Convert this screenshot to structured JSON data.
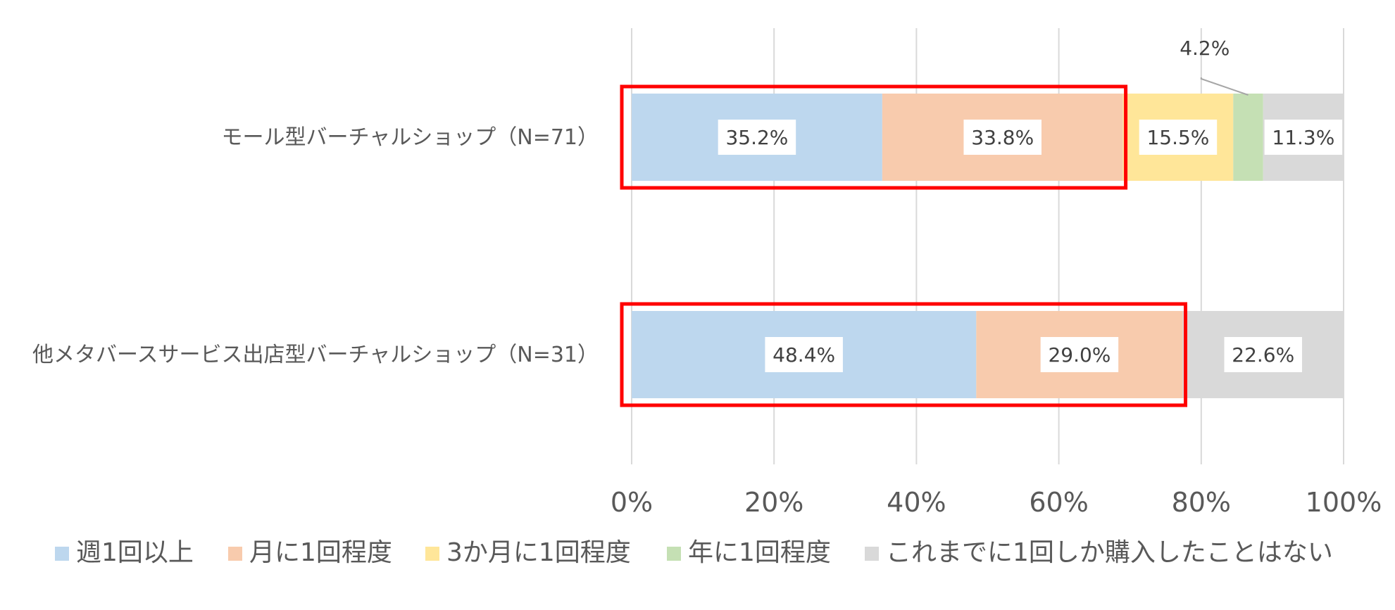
{
  "chart_data": {
    "type": "bar",
    "orientation": "horizontal",
    "stacked": "percent",
    "categories": [
      "モール型バーチャルショップ（N=71）",
      "他メタバースサービス出店型バーチャルショップ（N=31）"
    ],
    "series": [
      {
        "name": "週1回以上",
        "color": "#BDD7EE",
        "values": [
          35.2,
          48.4
        ],
        "labels": [
          "35.2%",
          "48.4%"
        ]
      },
      {
        "name": "月に1回程度",
        "color": "#F8CBAD",
        "values": [
          33.8,
          29.0
        ],
        "labels": [
          "33.8%",
          "29.0%"
        ]
      },
      {
        "name": "3か月に1回程度",
        "color": "#FFE699",
        "values": [
          15.5,
          0
        ],
        "labels": [
          "15.5%",
          ""
        ]
      },
      {
        "name": "年に1回程度",
        "color": "#C5E0B4",
        "values": [
          4.2,
          0
        ],
        "labels": [
          "4.2%",
          ""
        ]
      },
      {
        "name": "これまでに1回しか購入したことはない",
        "color": "#D9D9D9",
        "values": [
          11.3,
          22.6
        ],
        "labels": [
          "11.3%",
          "22.6%"
        ]
      }
    ],
    "x_ticks": [
      "0%",
      "20%",
      "40%",
      "60%",
      "80%",
      "100%"
    ],
    "xlim": [
      0,
      100
    ],
    "grid": "vertical",
    "legend": "bottom",
    "highlights": [
      {
        "category": 0,
        "from": 0,
        "to": 69.0,
        "color": "#FF0000"
      },
      {
        "category": 1,
        "from": 0,
        "to": 77.4,
        "color": "#FF0000"
      }
    ]
  }
}
